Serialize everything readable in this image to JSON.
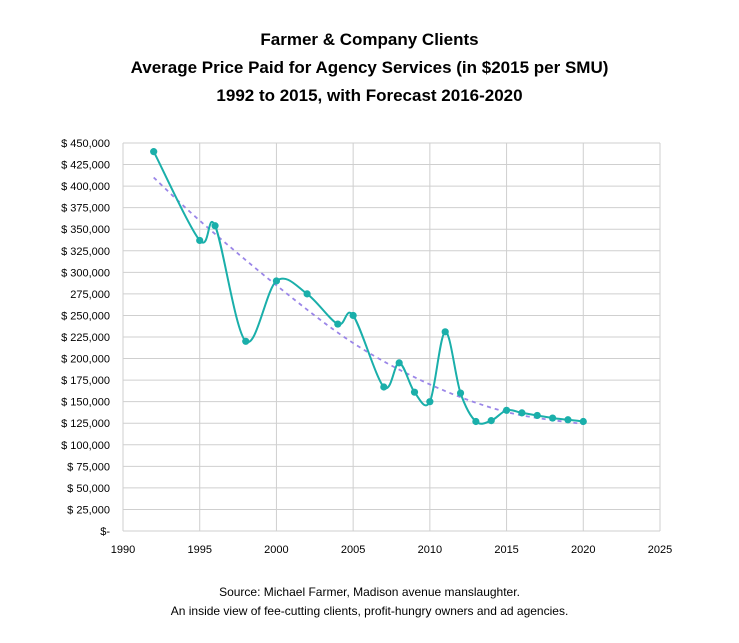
{
  "chart_data": {
    "type": "line",
    "title": [
      "Farmer & Company Clients",
      "Average Price Paid for Agency Services (in $2015 per SMU)",
      "1992 to 2015, with Forecast 2016-2020"
    ],
    "xlim": [
      1990,
      2025
    ],
    "ylim": [
      0,
      450000
    ],
    "x_ticks": [
      "1990",
      "1995",
      "2000",
      "2005",
      "2010",
      "2015",
      "2020",
      "2025"
    ],
    "y_ticks": [
      "$-",
      "$ 25,000",
      "$ 50,000",
      "$ 75,000",
      "$ 100,000",
      "$ 125,000",
      "$ 150,000",
      "$ 175,000",
      "$ 200,000",
      "$ 225,000",
      "$ 250,000",
      "275,000",
      "$ 300,000",
      "$ 325,000",
      "$ 350,000",
      "$ 375,000",
      "$ 400,000",
      "$ 425,000",
      "$ 450,000"
    ],
    "grid": true,
    "series": [
      {
        "color": "#1aafaa",
        "style": "smooth-line-with-markers",
        "points": [
          [
            1992,
            440000
          ],
          [
            1995,
            337000
          ],
          [
            1996,
            354000
          ],
          [
            1998,
            220000
          ],
          [
            2000,
            290000
          ],
          [
            2002,
            275000
          ],
          [
            2004,
            240000
          ],
          [
            2005,
            250000
          ],
          [
            2007,
            167000
          ],
          [
            2008,
            195000
          ],
          [
            2009,
            161000
          ],
          [
            2010,
            150000
          ],
          [
            2011,
            231000
          ],
          [
            2012,
            160000
          ],
          [
            2013,
            127000
          ],
          [
            2014,
            128000
          ],
          [
            2015,
            140000
          ],
          [
            2016,
            137000
          ],
          [
            2017,
            134000
          ],
          [
            2018,
            131000
          ],
          [
            2019,
            129000
          ],
          [
            2020,
            127000
          ]
        ]
      },
      {
        "color": "#9b86e8",
        "style": "dashed-trendline",
        "points": [
          [
            1992,
            410000
          ],
          [
            1995,
            360000
          ],
          [
            2000,
            285000
          ],
          [
            2005,
            218000
          ],
          [
            2010,
            170000
          ],
          [
            2015,
            138000
          ],
          [
            2020,
            124000
          ]
        ]
      }
    ]
  },
  "source": {
    "line1": "Source: Michael Farmer, Madison avenue manslaughter.",
    "line2": "An inside view of fee-cutting clients, profit-hungry owners and ad agencies."
  }
}
